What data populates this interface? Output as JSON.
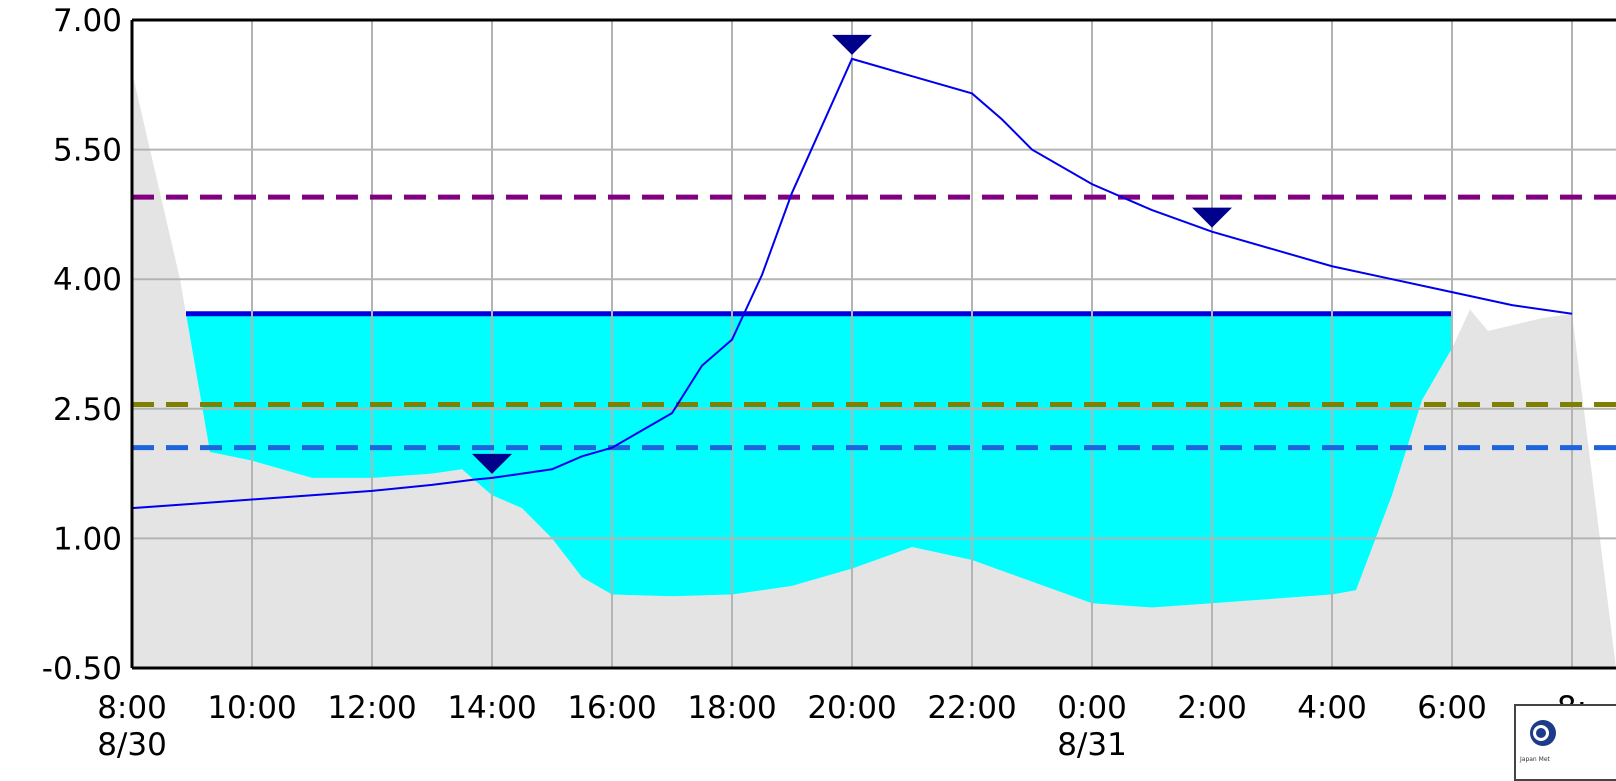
{
  "chart_data": {
    "type": "line",
    "y_tick_labels": [
      "7.00",
      "5.50",
      "4.00",
      "2.50",
      "1.00",
      "-0.50"
    ],
    "ylim": [
      -0.5,
      7.0
    ],
    "x_tick_labels": [
      {
        "time": "8:00",
        "date": "8/30"
      },
      {
        "time": "10:00",
        "date": ""
      },
      {
        "time": "12:00",
        "date": ""
      },
      {
        "time": "14:00",
        "date": ""
      },
      {
        "time": "16:00",
        "date": ""
      },
      {
        "time": "18:00",
        "date": ""
      },
      {
        "time": "20:00",
        "date": ""
      },
      {
        "time": "22:00",
        "date": ""
      },
      {
        "time": "0:00",
        "date": "8/31"
      },
      {
        "time": "2:00",
        "date": ""
      },
      {
        "time": "4:00",
        "date": ""
      },
      {
        "time": "6:00",
        "date": ""
      },
      {
        "time": "8:",
        "date": ""
      }
    ],
    "x_unit": "hours from 8/30 8:00",
    "grid": true,
    "background_area": {
      "color": "#e4e4e4",
      "points": [
        [
          0,
          6.4
        ],
        [
          0.8,
          4.0
        ],
        [
          1.3,
          2.0
        ],
        [
          2,
          1.9
        ],
        [
          3,
          1.7
        ],
        [
          4,
          1.7
        ],
        [
          5,
          1.75
        ],
        [
          5.5,
          1.8
        ],
        [
          6,
          1.5
        ],
        [
          6.5,
          1.35
        ],
        [
          7,
          1.0
        ],
        [
          7.5,
          0.55
        ],
        [
          8,
          0.35
        ],
        [
          9,
          0.33
        ],
        [
          10,
          0.35
        ],
        [
          11,
          0.45
        ],
        [
          12,
          0.65
        ],
        [
          13,
          0.9
        ],
        [
          14,
          0.75
        ],
        [
          15,
          0.5
        ],
        [
          16,
          0.25
        ],
        [
          17,
          0.2
        ],
        [
          18,
          0.25
        ],
        [
          19,
          0.3
        ],
        [
          20,
          0.35
        ],
        [
          20.4,
          0.4
        ],
        [
          21,
          1.5
        ],
        [
          21.5,
          2.6
        ],
        [
          22,
          3.2
        ],
        [
          22.3,
          3.65
        ],
        [
          22.6,
          3.4
        ],
        [
          23.5,
          3.55
        ],
        [
          24,
          3.6
        ]
      ]
    },
    "flood_area": {
      "fill": "#00ffff",
      "top_value": 3.6,
      "x_range": [
        0.9,
        22.0
      ],
      "top_line_color": "#0000dd"
    },
    "threshold_lines": [
      {
        "value": 4.95,
        "color": "#800080",
        "style": "dashed"
      },
      {
        "value": 2.55,
        "color": "#808000",
        "style": "dashed"
      },
      {
        "value": 2.05,
        "color": "#1e64dc",
        "style": "dashed"
      }
    ],
    "series": [
      {
        "color": "#0000ee",
        "x": [
          0,
          1,
          2,
          3,
          4,
          5,
          5.7,
          6,
          6.5,
          7,
          7.5,
          8,
          9,
          9.5,
          10,
          10.5,
          11,
          12,
          13,
          14,
          14.5,
          15,
          16,
          17,
          18,
          19,
          20,
          21,
          22,
          23,
          24
        ],
        "y": [
          1.35,
          1.4,
          1.45,
          1.5,
          1.55,
          1.62,
          1.68,
          1.7,
          1.75,
          1.8,
          1.95,
          2.05,
          2.45,
          3.0,
          3.3,
          4.05,
          5.0,
          6.55,
          6.35,
          6.15,
          5.85,
          5.5,
          5.1,
          4.8,
          4.55,
          4.35,
          4.15,
          4.0,
          3.85,
          3.7,
          3.6
        ]
      }
    ],
    "markers": [
      {
        "x": 6.0,
        "y": 1.7,
        "shape": "triangle-down",
        "color": "#00008b"
      },
      {
        "x": 12.0,
        "y": 6.55,
        "shape": "triangle-down",
        "color": "#00008b"
      },
      {
        "x": 18.0,
        "y": 4.55,
        "shape": "triangle-down",
        "color": "#00008b"
      }
    ],
    "title": "",
    "xlabel": "",
    "ylabel": ""
  },
  "logo": {
    "text": "Japan Met"
  }
}
